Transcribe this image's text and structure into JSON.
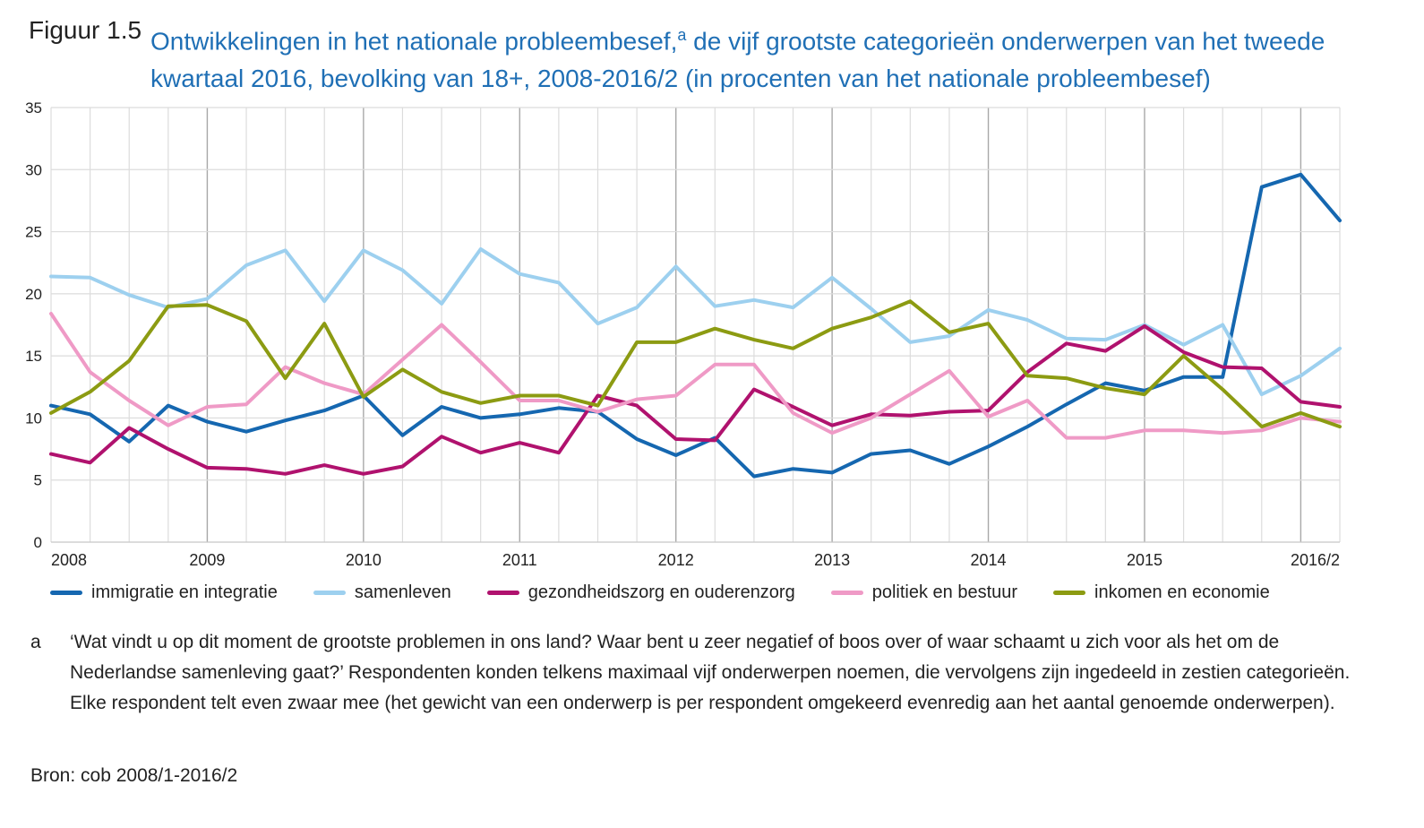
{
  "figure": {
    "label": "Figuur 1.5",
    "title_part1": "Ontwikkelingen in het nationale probleembesef,",
    "title_sup": "a",
    "title_part2": " de vijf grootste categorieën onderwerpen van het tweede kwartaal 2016, bevolking van 18+, 2008-2016/2 (in procenten van het nationale probleembesef)"
  },
  "footnote": {
    "marker": "a",
    "text": "‘Wat vindt u op dit moment de grootste problemen in ons land? Waar bent u zeer negatief of boos over of waar schaamt u zich voor als het om de Nederlandse samenleving gaat?’ Respondenten konden telkens maximaal vijf onderwerpen noemen, die vervolgens zijn ingedeeld in zestien categorieën. Elke respondent telt even zwaar mee (het gewicht van een onderwerp is per respondent omgekeerd evenredig aan het aantal genoemde onderwerpen)."
  },
  "source": "Bron: cob 2008/1-2016/2",
  "chart_data": {
    "type": "line",
    "ylim": [
      0,
      35
    ],
    "yticks": [
      0,
      5,
      10,
      15,
      20,
      25,
      30,
      35
    ],
    "x_tick_labels": [
      "2008",
      "2009",
      "2010",
      "2011",
      "2012",
      "2013",
      "2014",
      "2015",
      "2016/2"
    ],
    "grid": true,
    "legend_position": "bottom",
    "series": [
      {
        "name": "immigratie en integratie",
        "color": "#1567b0",
        "values": [
          11,
          10.3,
          8.1,
          11,
          9.7,
          8.9,
          9.8,
          10.6,
          11.8,
          8.6,
          10.9,
          10,
          10.3,
          10.8,
          10.5,
          8.3,
          7,
          8.4,
          5.3,
          5.9,
          5.6,
          7.1,
          7.4,
          6.3,
          7.7,
          9.3,
          11.1,
          12.8,
          12.2,
          13.3,
          13.3,
          28.6,
          29.6,
          25.9
        ]
      },
      {
        "name": "samenleven",
        "color": "#9dd0ef",
        "values": [
          21.4,
          21.3,
          19.9,
          18.9,
          19.6,
          22.3,
          23.5,
          19.4,
          23.5,
          21.9,
          19.2,
          23.6,
          21.6,
          20.9,
          17.6,
          18.9,
          22.2,
          19,
          19.5,
          18.9,
          21.3,
          18.8,
          16.1,
          16.6,
          18.7,
          17.9,
          16.4,
          16.3,
          17.5,
          15.9,
          17.5,
          11.9,
          13.4,
          15.6
        ]
      },
      {
        "name": "gezondheidszorg en ouderenzorg",
        "color": "#b0126e",
        "values": [
          7.1,
          6.4,
          9.2,
          7.5,
          6,
          5.9,
          5.5,
          6.2,
          5.5,
          6.1,
          8.5,
          7.2,
          8,
          7.2,
          11.8,
          11,
          8.3,
          8.2,
          12.3,
          10.9,
          9.4,
          10.3,
          10.2,
          10.5,
          10.6,
          13.7,
          16,
          15.4,
          17.4,
          15.3,
          14.1,
          14,
          11.3,
          10.9
        ]
      },
      {
        "name": "politiek en bestuur",
        "color": "#ef9ac6",
        "values": [
          18.4,
          13.7,
          11.4,
          9.4,
          10.9,
          11.1,
          14.1,
          12.8,
          11.9,
          14.7,
          17.5,
          14.5,
          11.4,
          11.4,
          10.5,
          11.5,
          11.8,
          14.3,
          14.3,
          10.4,
          8.8,
          10,
          11.9,
          13.8,
          10.1,
          11.4,
          8.4,
          8.4,
          9,
          9,
          8.8,
          9,
          10,
          9.7
        ]
      },
      {
        "name": "inkomen en economie",
        "color": "#8c9b12",
        "values": [
          10.4,
          12.1,
          14.6,
          19,
          19.1,
          17.8,
          13.2,
          17.6,
          11.7,
          13.9,
          12.1,
          11.2,
          11.8,
          11.8,
          11,
          16.1,
          16.1,
          17.2,
          16.3,
          15.6,
          17.2,
          18.1,
          19.4,
          16.9,
          17.6,
          13.4,
          13.2,
          12.4,
          11.9,
          15,
          12.3,
          9.3,
          10.4,
          9.3
        ]
      }
    ]
  }
}
